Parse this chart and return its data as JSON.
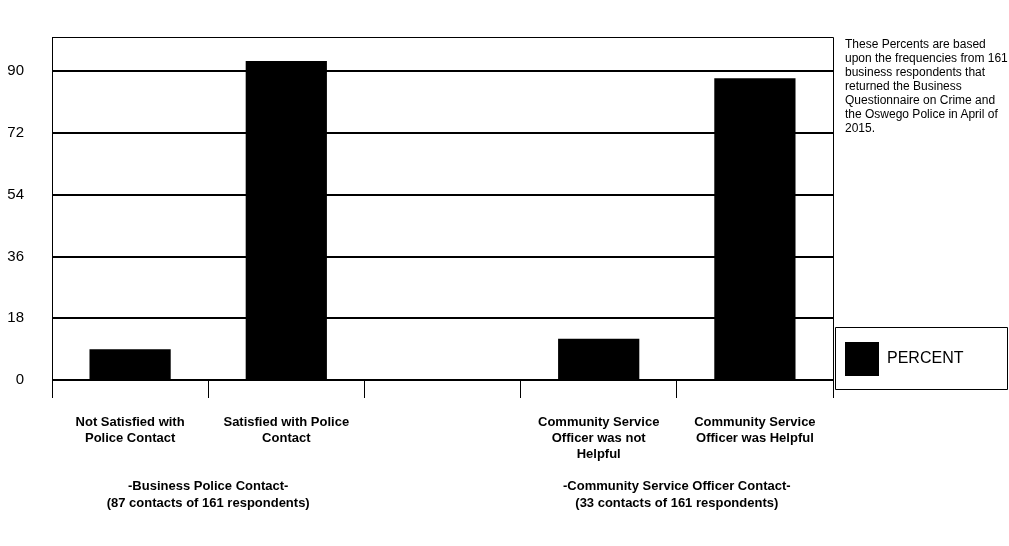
{
  "chart_data": {
    "type": "bar",
    "categories": [
      "Not Satisfied with Police Contact",
      "Satisfied with Police Contact",
      null,
      "Community Service Officer was not Helpful",
      "Community Service Officer was Helpful"
    ],
    "series": [
      {
        "name": "PERCENT",
        "color": "#000000",
        "values": [
          9,
          93,
          null,
          12,
          88
        ]
      }
    ],
    "ylim": [
      0,
      100
    ],
    "yticks": [
      0,
      18,
      36,
      54,
      72,
      90
    ],
    "grid": "y",
    "legend": "right",
    "annotations": [
      "-Business Police Contact-\n(87 contacts of 161 respondents)",
      "-Community Service Officer Contact-\n(33 contacts of 161 respondents)",
      "These Percents are based upon the frequencies from 161 business respondents that returned the Business Questionnaire on Crime and the Oswego Police in April of 2015."
    ]
  }
}
